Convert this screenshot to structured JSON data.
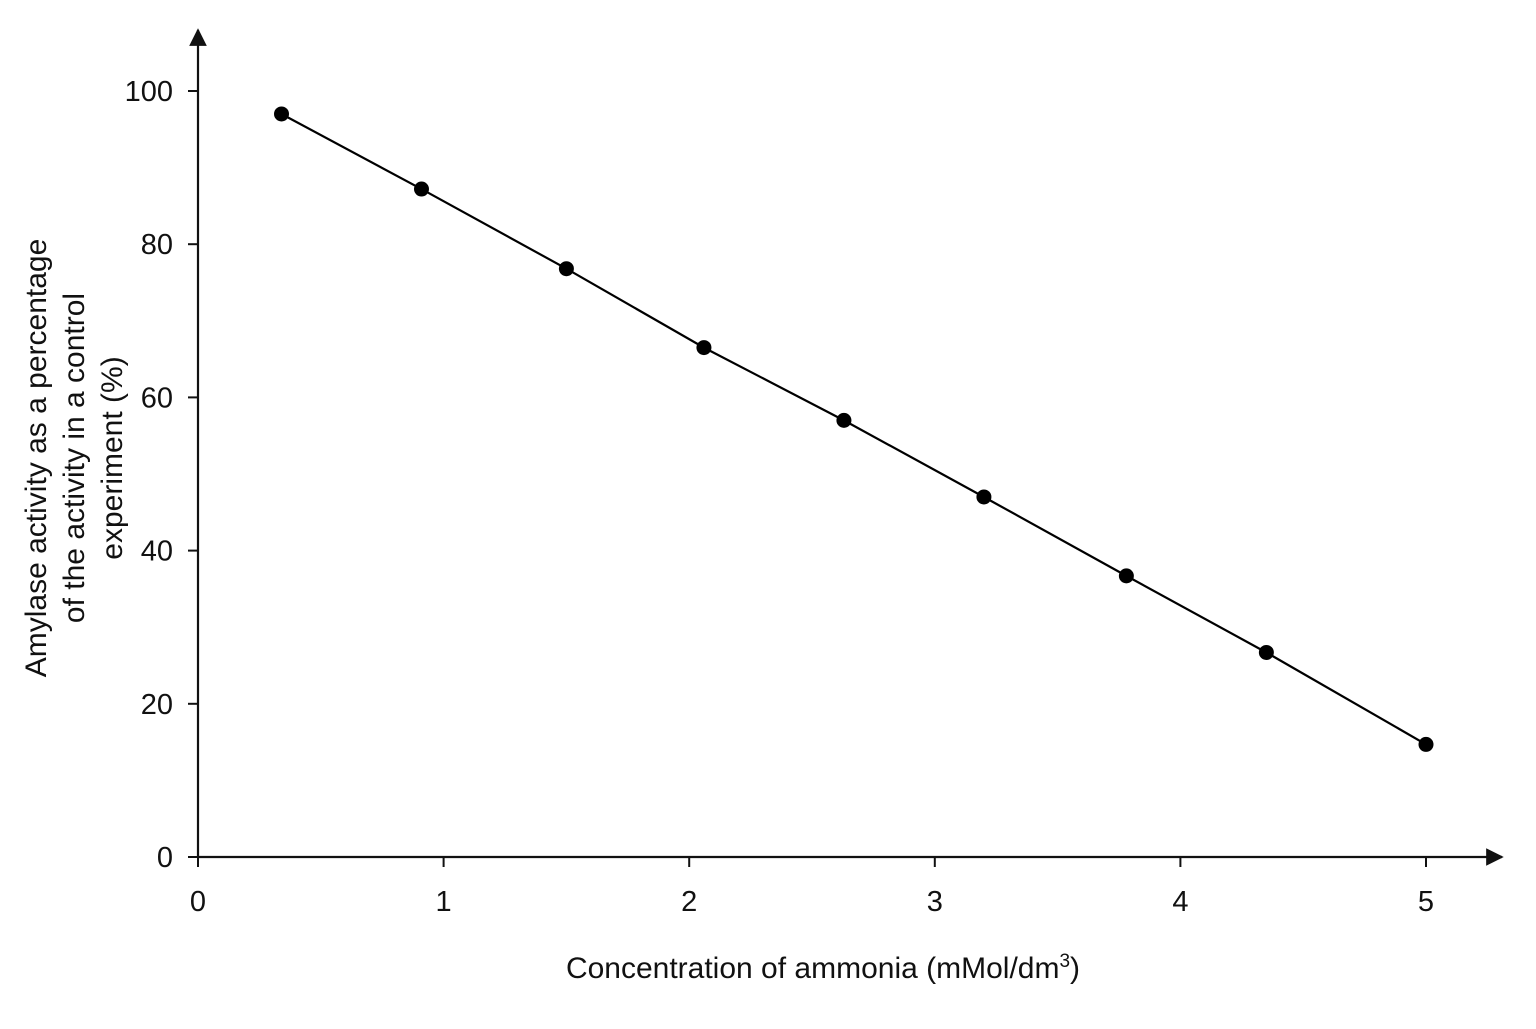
{
  "chart_data": {
    "type": "line",
    "title": "",
    "xlabel": "Concentration of ammonia (mMol/dm",
    "xlabel_superscript": "3",
    "xlabel_suffix": ")",
    "ylabel_lines": [
      "Amylase activity as a percentage",
      "of the activity in a control",
      "experiment (%)"
    ],
    "xlim": [
      0,
      5
    ],
    "ylim": [
      0,
      100
    ],
    "x_ticks": [
      0,
      1,
      2,
      3,
      4,
      5
    ],
    "y_ticks": [
      0,
      20,
      40,
      60,
      80,
      100
    ],
    "grid": false,
    "series": [
      {
        "x": [
          0.34,
          0.91,
          1.5,
          2.06,
          2.63,
          3.2,
          3.78,
          4.35,
          5.0
        ],
        "y": [
          97,
          87.2,
          76.8,
          66.5,
          57,
          47,
          36.7,
          26.7,
          14.7
        ],
        "marker": "filled-circle",
        "color": "#000000"
      }
    ]
  }
}
